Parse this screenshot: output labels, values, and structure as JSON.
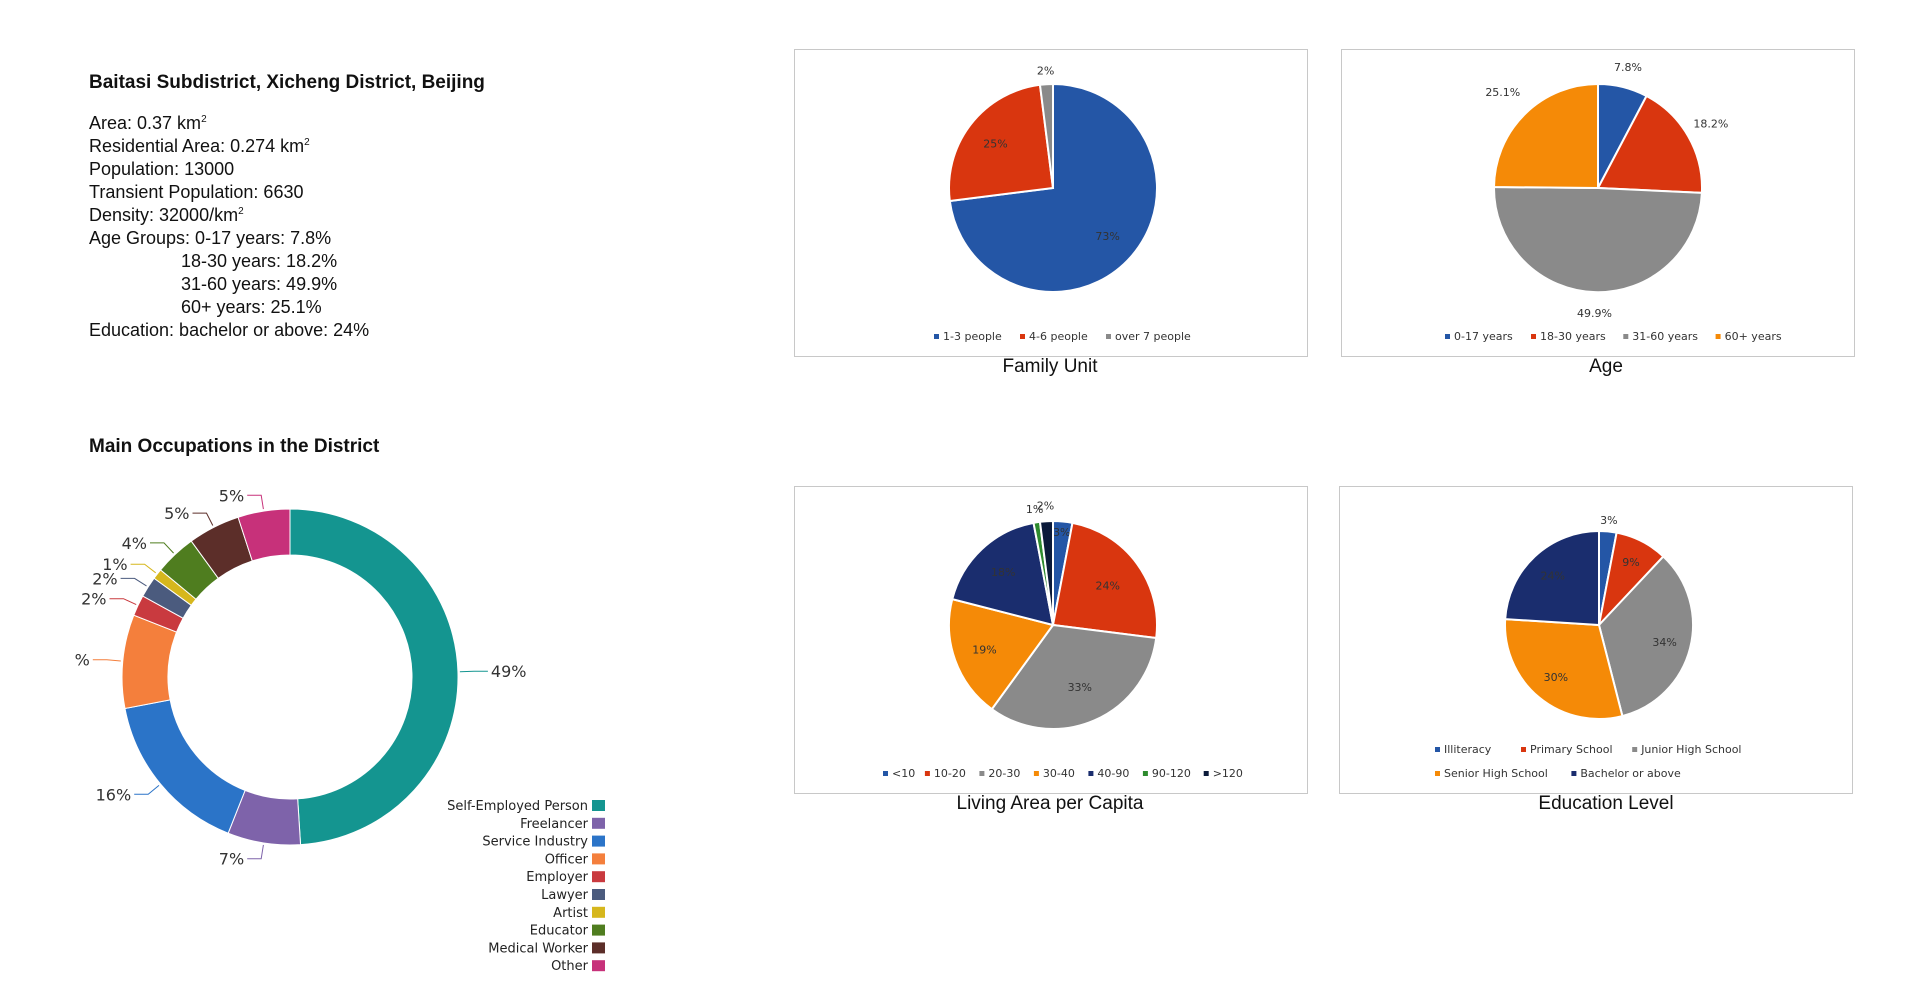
{
  "info": {
    "title": "Baitasi Subdistrict, Xicheng District, Beijing",
    "area": "Area: 0.37 km",
    "residential_area": "Residential Area:  0.274 km",
    "sup": "2",
    "population": "Population: 13000",
    "transient_population": "Transient Population: 6630",
    "density": "Density: 32000/km",
    "age_groups_1": "Age Groups: 0-17 years: 7.8%",
    "age_groups_2": "18-30 years: 18.2%",
    "age_groups_3": "31-60 years: 49.9%",
    "age_groups_4": "60+ years: 25.1%",
    "education": "Education: bachelor or above: 24%"
  },
  "occupations_title": "Main Occupations in the District",
  "chart_data": [
    {
      "id": "family",
      "type": "pie",
      "caption": "Family Unit",
      "categories": [
        "1-3 people",
        "4-6 people",
        "over 7 people"
      ],
      "values": [
        73,
        25,
        2
      ],
      "labels": [
        "73%",
        "25%",
        "2%"
      ],
      "colors": [
        "#2456a6",
        "#d9360f",
        "#8a8a8a"
      ],
      "legend": "bottom"
    },
    {
      "id": "age",
      "type": "pie",
      "caption": "Age",
      "categories": [
        "0-17 years",
        "18-30 years",
        "31-60 years",
        "60+ years"
      ],
      "values": [
        7.8,
        18.2,
        49.9,
        25.1
      ],
      "labels": [
        "7.8%",
        "18.2%",
        "49.9%",
        "25.1%"
      ],
      "colors": [
        "#2456a6",
        "#d9360f",
        "#8a8a8a",
        "#f58a07"
      ],
      "legend": "bottom"
    },
    {
      "id": "living",
      "type": "pie",
      "caption": "Living Area per Capita",
      "categories": [
        "<10",
        "10-20",
        "20-30",
        "30-40",
        "40-90",
        "90-120",
        ">120"
      ],
      "values": [
        3,
        24,
        33,
        19,
        18,
        1,
        2
      ],
      "labels": [
        "3%",
        "24%",
        "33%",
        "19%",
        "18%",
        "1%",
        "2%"
      ],
      "colors": [
        "#2456a6",
        "#d9360f",
        "#8a8a8a",
        "#f58a07",
        "#1a2d6e",
        "#2e8b2e",
        "#0b1a3a"
      ],
      "legend": "bottom"
    },
    {
      "id": "education",
      "type": "pie",
      "caption": "Education Level",
      "categories": [
        "Illiteracy",
        "Primary School",
        "Junior High School",
        "Senior High School",
        "Bachelor or above"
      ],
      "values": [
        3,
        9,
        34,
        30,
        24
      ],
      "labels": [
        "3%",
        "9%",
        "34%",
        "30%",
        "24%"
      ],
      "colors": [
        "#2456a6",
        "#d9360f",
        "#8a8a8a",
        "#f58a07",
        "#1a2d6e"
      ],
      "legend": "bottom"
    },
    {
      "id": "occupations",
      "type": "donut",
      "title": "Main Occupations in the District",
      "categories": [
        "Self-Employed Person",
        "Freelancer",
        "Service Industry",
        "Officer",
        "Employer",
        "Lawyer",
        "Artist",
        "Educator",
        "Medical Worker",
        "Other"
      ],
      "values": [
        49,
        7,
        16,
        9,
        2,
        2,
        1,
        4,
        5,
        5
      ],
      "labels": [
        "49%",
        "7%",
        "16%",
        "%",
        "2%",
        "2%",
        "1%",
        "4%",
        "5%",
        "5%"
      ],
      "colors": [
        "#149590",
        "#7e63aa",
        "#2b74c8",
        "#f47f3c",
        "#c93a3f",
        "#4b5b7e",
        "#d6b71d",
        "#4f7d1f",
        "#5c2e29",
        "#c7317a"
      ],
      "legend": "bottom-right"
    }
  ]
}
